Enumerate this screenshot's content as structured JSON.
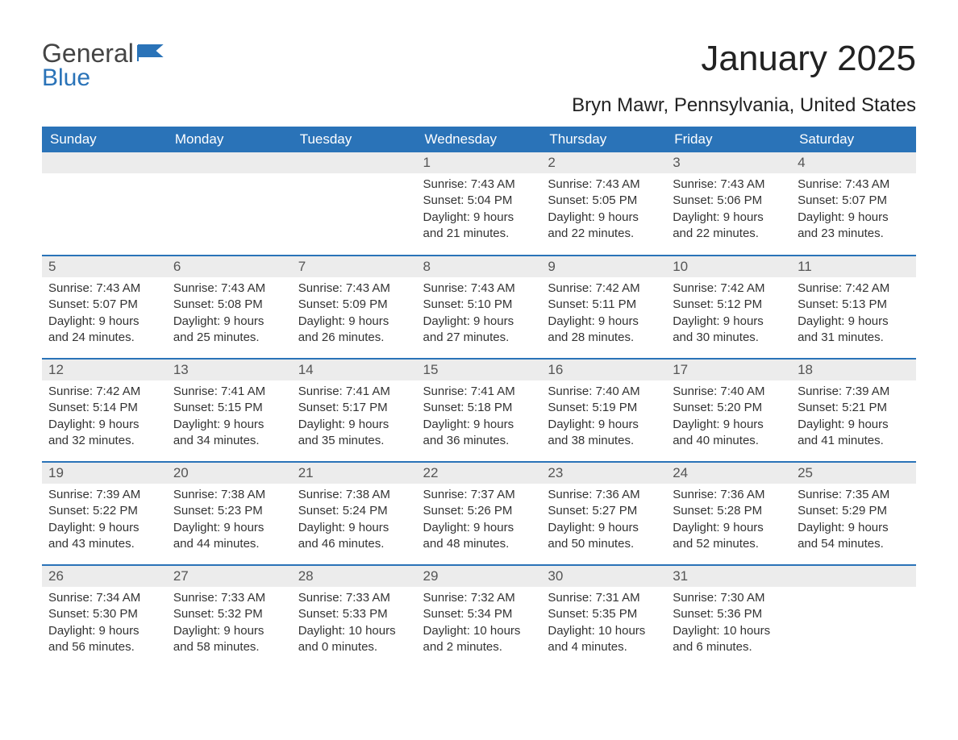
{
  "brand": {
    "word1": "General",
    "word2": "Blue",
    "color_accent": "#2a73b8",
    "color_text": "#444"
  },
  "header": {
    "title": "January 2025",
    "subtitle": "Bryn Mawr, Pennsylvania, United States"
  },
  "calendar": {
    "day_header_bg": "#2a73b8",
    "day_header_fg": "#ffffff",
    "daynum_bg": "#ececec",
    "border_color": "#2a73b8",
    "font_family": "Arial",
    "days": [
      "Sunday",
      "Monday",
      "Tuesday",
      "Wednesday",
      "Thursday",
      "Friday",
      "Saturday"
    ],
    "weeks": [
      [
        null,
        null,
        null,
        {
          "n": "1",
          "sunrise": "Sunrise: 7:43 AM",
          "sunset": "Sunset: 5:04 PM",
          "dl1": "Daylight: 9 hours",
          "dl2": "and 21 minutes."
        },
        {
          "n": "2",
          "sunrise": "Sunrise: 7:43 AM",
          "sunset": "Sunset: 5:05 PM",
          "dl1": "Daylight: 9 hours",
          "dl2": "and 22 minutes."
        },
        {
          "n": "3",
          "sunrise": "Sunrise: 7:43 AM",
          "sunset": "Sunset: 5:06 PM",
          "dl1": "Daylight: 9 hours",
          "dl2": "and 22 minutes."
        },
        {
          "n": "4",
          "sunrise": "Sunrise: 7:43 AM",
          "sunset": "Sunset: 5:07 PM",
          "dl1": "Daylight: 9 hours",
          "dl2": "and 23 minutes."
        }
      ],
      [
        {
          "n": "5",
          "sunrise": "Sunrise: 7:43 AM",
          "sunset": "Sunset: 5:07 PM",
          "dl1": "Daylight: 9 hours",
          "dl2": "and 24 minutes."
        },
        {
          "n": "6",
          "sunrise": "Sunrise: 7:43 AM",
          "sunset": "Sunset: 5:08 PM",
          "dl1": "Daylight: 9 hours",
          "dl2": "and 25 minutes."
        },
        {
          "n": "7",
          "sunrise": "Sunrise: 7:43 AM",
          "sunset": "Sunset: 5:09 PM",
          "dl1": "Daylight: 9 hours",
          "dl2": "and 26 minutes."
        },
        {
          "n": "8",
          "sunrise": "Sunrise: 7:43 AM",
          "sunset": "Sunset: 5:10 PM",
          "dl1": "Daylight: 9 hours",
          "dl2": "and 27 minutes."
        },
        {
          "n": "9",
          "sunrise": "Sunrise: 7:42 AM",
          "sunset": "Sunset: 5:11 PM",
          "dl1": "Daylight: 9 hours",
          "dl2": "and 28 minutes."
        },
        {
          "n": "10",
          "sunrise": "Sunrise: 7:42 AM",
          "sunset": "Sunset: 5:12 PM",
          "dl1": "Daylight: 9 hours",
          "dl2": "and 30 minutes."
        },
        {
          "n": "11",
          "sunrise": "Sunrise: 7:42 AM",
          "sunset": "Sunset: 5:13 PM",
          "dl1": "Daylight: 9 hours",
          "dl2": "and 31 minutes."
        }
      ],
      [
        {
          "n": "12",
          "sunrise": "Sunrise: 7:42 AM",
          "sunset": "Sunset: 5:14 PM",
          "dl1": "Daylight: 9 hours",
          "dl2": "and 32 minutes."
        },
        {
          "n": "13",
          "sunrise": "Sunrise: 7:41 AM",
          "sunset": "Sunset: 5:15 PM",
          "dl1": "Daylight: 9 hours",
          "dl2": "and 34 minutes."
        },
        {
          "n": "14",
          "sunrise": "Sunrise: 7:41 AM",
          "sunset": "Sunset: 5:17 PM",
          "dl1": "Daylight: 9 hours",
          "dl2": "and 35 minutes."
        },
        {
          "n": "15",
          "sunrise": "Sunrise: 7:41 AM",
          "sunset": "Sunset: 5:18 PM",
          "dl1": "Daylight: 9 hours",
          "dl2": "and 36 minutes."
        },
        {
          "n": "16",
          "sunrise": "Sunrise: 7:40 AM",
          "sunset": "Sunset: 5:19 PM",
          "dl1": "Daylight: 9 hours",
          "dl2": "and 38 minutes."
        },
        {
          "n": "17",
          "sunrise": "Sunrise: 7:40 AM",
          "sunset": "Sunset: 5:20 PM",
          "dl1": "Daylight: 9 hours",
          "dl2": "and 40 minutes."
        },
        {
          "n": "18",
          "sunrise": "Sunrise: 7:39 AM",
          "sunset": "Sunset: 5:21 PM",
          "dl1": "Daylight: 9 hours",
          "dl2": "and 41 minutes."
        }
      ],
      [
        {
          "n": "19",
          "sunrise": "Sunrise: 7:39 AM",
          "sunset": "Sunset: 5:22 PM",
          "dl1": "Daylight: 9 hours",
          "dl2": "and 43 minutes."
        },
        {
          "n": "20",
          "sunrise": "Sunrise: 7:38 AM",
          "sunset": "Sunset: 5:23 PM",
          "dl1": "Daylight: 9 hours",
          "dl2": "and 44 minutes."
        },
        {
          "n": "21",
          "sunrise": "Sunrise: 7:38 AM",
          "sunset": "Sunset: 5:24 PM",
          "dl1": "Daylight: 9 hours",
          "dl2": "and 46 minutes."
        },
        {
          "n": "22",
          "sunrise": "Sunrise: 7:37 AM",
          "sunset": "Sunset: 5:26 PM",
          "dl1": "Daylight: 9 hours",
          "dl2": "and 48 minutes."
        },
        {
          "n": "23",
          "sunrise": "Sunrise: 7:36 AM",
          "sunset": "Sunset: 5:27 PM",
          "dl1": "Daylight: 9 hours",
          "dl2": "and 50 minutes."
        },
        {
          "n": "24",
          "sunrise": "Sunrise: 7:36 AM",
          "sunset": "Sunset: 5:28 PM",
          "dl1": "Daylight: 9 hours",
          "dl2": "and 52 minutes."
        },
        {
          "n": "25",
          "sunrise": "Sunrise: 7:35 AM",
          "sunset": "Sunset: 5:29 PM",
          "dl1": "Daylight: 9 hours",
          "dl2": "and 54 minutes."
        }
      ],
      [
        {
          "n": "26",
          "sunrise": "Sunrise: 7:34 AM",
          "sunset": "Sunset: 5:30 PM",
          "dl1": "Daylight: 9 hours",
          "dl2": "and 56 minutes."
        },
        {
          "n": "27",
          "sunrise": "Sunrise: 7:33 AM",
          "sunset": "Sunset: 5:32 PM",
          "dl1": "Daylight: 9 hours",
          "dl2": "and 58 minutes."
        },
        {
          "n": "28",
          "sunrise": "Sunrise: 7:33 AM",
          "sunset": "Sunset: 5:33 PM",
          "dl1": "Daylight: 10 hours",
          "dl2": "and 0 minutes."
        },
        {
          "n": "29",
          "sunrise": "Sunrise: 7:32 AM",
          "sunset": "Sunset: 5:34 PM",
          "dl1": "Daylight: 10 hours",
          "dl2": "and 2 minutes."
        },
        {
          "n": "30",
          "sunrise": "Sunrise: 7:31 AM",
          "sunset": "Sunset: 5:35 PM",
          "dl1": "Daylight: 10 hours",
          "dl2": "and 4 minutes."
        },
        {
          "n": "31",
          "sunrise": "Sunrise: 7:30 AM",
          "sunset": "Sunset: 5:36 PM",
          "dl1": "Daylight: 10 hours",
          "dl2": "and 6 minutes."
        },
        null
      ]
    ]
  }
}
